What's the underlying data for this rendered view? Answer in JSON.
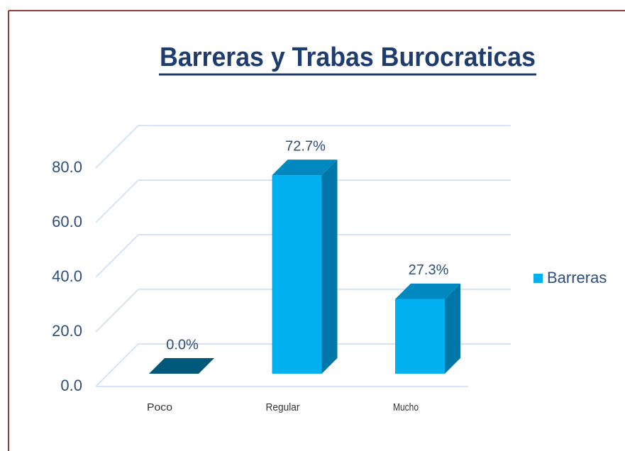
{
  "chart_data": {
    "type": "bar3d",
    "title": "Barreras y Trabas Burocraticas",
    "categories": [
      "Poco",
      "Regular",
      "Mucho"
    ],
    "series": [
      {
        "name": "Barreras",
        "color": "#00b0f0",
        "values": [
          0,
          72.7,
          27.3
        ],
        "value_labels": [
          "0.0%",
          "72.7%",
          "27.3%"
        ]
      }
    ],
    "ylim": [
      0,
      80
    ],
    "yticks": [
      {
        "value": 0,
        "label": "0.0"
      },
      {
        "value": 20,
        "label": "20.0"
      },
      {
        "value": 40,
        "label": "40.0"
      },
      {
        "value": 60,
        "label": "60.0"
      },
      {
        "value": 80,
        "label": "80.0"
      }
    ],
    "grid": true,
    "legend": "right"
  }
}
